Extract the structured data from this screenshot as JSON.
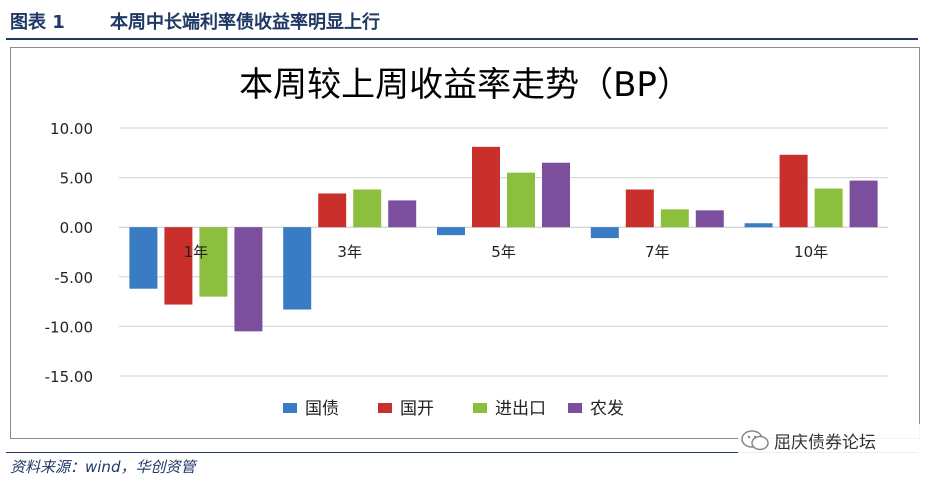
{
  "header": {
    "figure_label": "图表 1",
    "caption": "本周中长端利率债收益率明显上行"
  },
  "source": "资料来源：wind，华创资管",
  "watermark": "屈庆债券论坛",
  "colors": {
    "header_text": "#1f3864",
    "grid": "#d0d0d0",
    "axis_text": "#222222"
  },
  "chart_data": {
    "type": "bar",
    "title": "本周较上周收益率走势（BP）",
    "xlabel": "",
    "ylabel": "",
    "categories": [
      "1年",
      "3年",
      "5年",
      "7年",
      "10年"
    ],
    "series": [
      {
        "name": "国债",
        "color": "#3a7cc4",
        "values": [
          -6.2,
          -8.3,
          -0.8,
          -1.1,
          0.4
        ]
      },
      {
        "name": "国开",
        "color": "#c9302c",
        "values": [
          -7.8,
          3.4,
          8.1,
          3.8,
          7.3
        ]
      },
      {
        "name": "进出口",
        "color": "#8dbf3e",
        "values": [
          -7.0,
          3.8,
          5.5,
          1.8,
          3.9
        ]
      },
      {
        "name": "农发",
        "color": "#7b4f9e",
        "values": [
          -10.5,
          2.7,
          6.5,
          1.7,
          4.7
        ]
      }
    ],
    "ylim": [
      -15,
      10
    ],
    "yticks": [
      "10.00",
      "5.00",
      "0.00",
      "-5.00",
      "-10.00",
      "-15.00"
    ],
    "ytick_values": [
      10,
      5,
      0,
      -5,
      -10,
      -15
    ],
    "grid": true,
    "legend_position": "bottom"
  }
}
